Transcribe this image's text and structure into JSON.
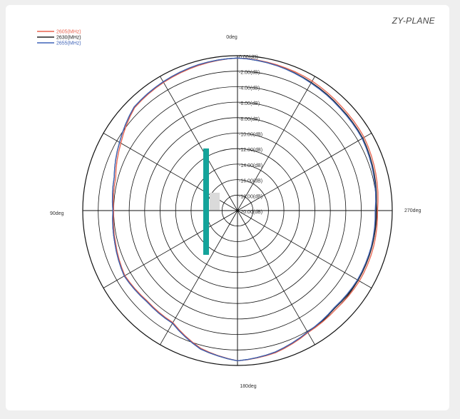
{
  "header": {
    "plane_label": "ZY-PLANE"
  },
  "chart_data": {
    "type": "polar",
    "angle_labels": {
      "top": "0deg",
      "left": "90deg",
      "right": "270deg",
      "bottom": "180deg"
    },
    "radial_unit": "dB",
    "radial_ticks": [
      "0.00(dB)",
      "-2.00(dB)",
      "-4.00(dB)",
      "-6.00(dB)",
      "-8.00(dB)",
      "-10.00(dB)",
      "-12.00(dB)",
      "-14.00(dB)",
      "-16.00(dB)",
      "-18.00(dB)",
      "-20.00(dB)"
    ],
    "rlim": [
      -20,
      0
    ],
    "angles_deg": [
      0,
      15,
      30,
      45,
      60,
      75,
      90,
      105,
      120,
      135,
      150,
      165,
      180,
      195,
      210,
      225,
      240,
      255,
      270,
      285,
      300,
      315,
      330,
      345
    ],
    "series": [
      {
        "name": "2605(MHz)",
        "color": "#e8624e",
        "values": [
          -0.3,
          -0.6,
          -0.9,
          -1.2,
          -2.6,
          -3.7,
          -4.0,
          -3.7,
          -3.2,
          -3.5,
          -3.3,
          -1.6,
          -0.6,
          -1.0,
          -1.8,
          -2.0,
          -1.8,
          -1.8,
          -1.9,
          -1.5,
          -1.1,
          -1.0,
          -0.7,
          -0.5
        ]
      },
      {
        "name": "2630(MHz)",
        "color": "#222222",
        "values": [
          -0.3,
          -0.5,
          -0.8,
          -1.1,
          -2.4,
          -3.5,
          -3.9,
          -3.6,
          -3.1,
          -3.4,
          -3.2,
          -1.5,
          -0.6,
          -1.1,
          -1.9,
          -2.2,
          -2.0,
          -2.0,
          -2.1,
          -1.7,
          -1.3,
          -1.2,
          -0.9,
          -0.6
        ]
      },
      {
        "name": "2655(MHz)",
        "color": "#3f63b8",
        "values": [
          -0.3,
          -0.5,
          -0.8,
          -1.1,
          -2.4,
          -3.5,
          -3.9,
          -3.6,
          -3.1,
          -3.4,
          -3.2,
          -1.5,
          -0.6,
          -1.1,
          -1.9,
          -2.3,
          -2.1,
          -2.1,
          -2.2,
          -1.8,
          -1.4,
          -1.3,
          -1.0,
          -0.6
        ]
      }
    ],
    "legend_position": "top-left"
  }
}
